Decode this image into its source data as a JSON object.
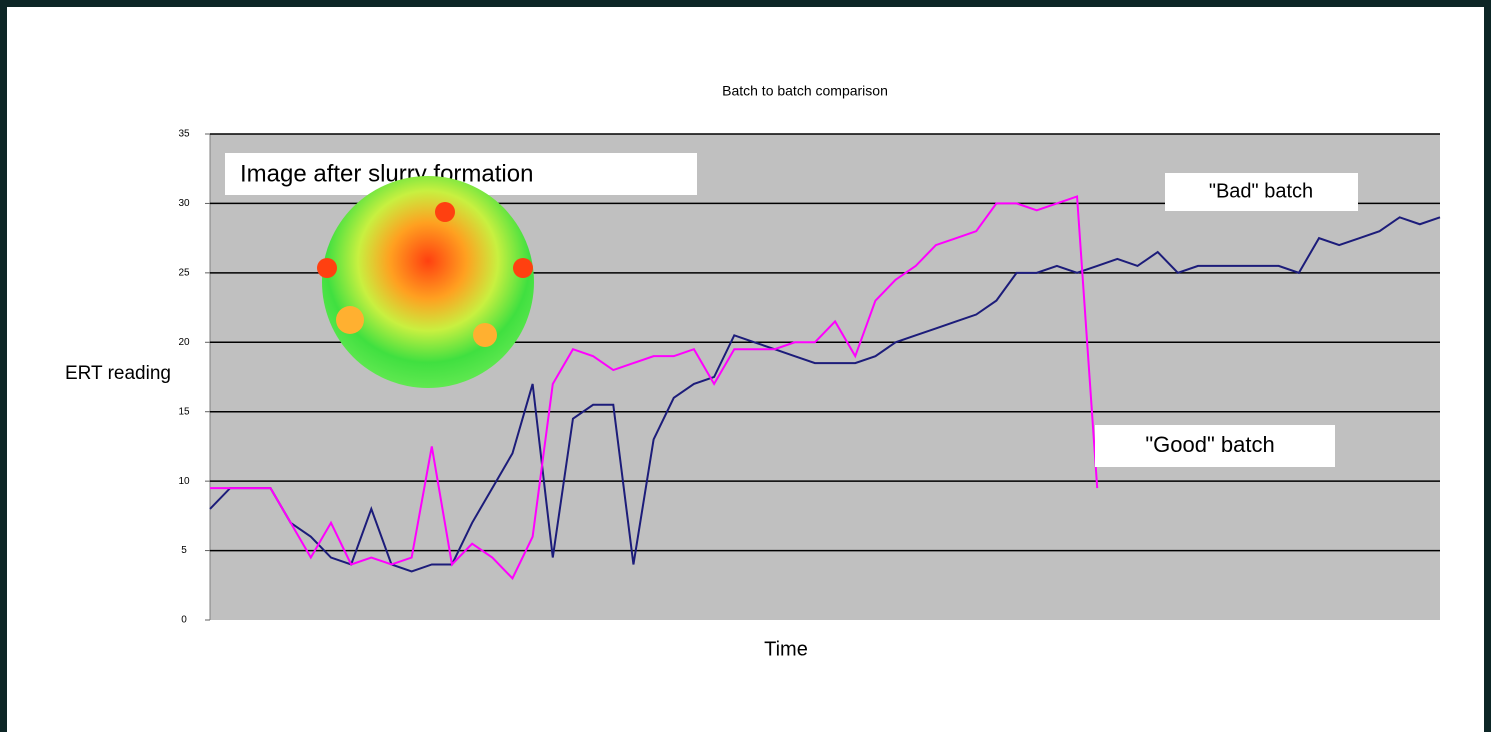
{
  "chart_data": {
    "type": "line",
    "title": "Batch to batch comparison",
    "x_label": "Time",
    "y_label": "ERT reading",
    "ylim": [
      0,
      35
    ],
    "yticks": [
      0,
      5,
      10,
      15,
      20,
      25,
      30,
      35
    ],
    "grid": true,
    "annotations": [
      "Image after slurry formation",
      "\"Bad\" batch",
      "\"Good\" batch"
    ],
    "series": [
      {
        "name": "\"Bad\" batch",
        "color": "#1c1c7a",
        "values": [
          8,
          9.5,
          9.5,
          9.5,
          7,
          6,
          4.5,
          4,
          8,
          4,
          3.5,
          4,
          4,
          7,
          9.5,
          12,
          17,
          4.5,
          14.5,
          15.5,
          15.5,
          4,
          13,
          16,
          17,
          17.5,
          20.5,
          20,
          19.5,
          19,
          18.5,
          18.5,
          18.5,
          19,
          20,
          20.5,
          21,
          21.5,
          22,
          23,
          25,
          25,
          25.5,
          25,
          25.5,
          26,
          25.5,
          26.5,
          25,
          25.5,
          25.5,
          25.5,
          25.5,
          25.5,
          25,
          27.5,
          27,
          27.5,
          28,
          29,
          28.5,
          29
        ]
      },
      {
        "name": "\"Good\" batch",
        "color": "#ff00ff",
        "values": [
          9.5,
          9.5,
          9.5,
          9.5,
          7,
          4.5,
          7,
          4,
          4.5,
          4,
          4.5,
          12.5,
          4,
          5.5,
          4.5,
          3,
          6,
          17,
          19.5,
          19,
          18,
          18.5,
          19,
          19,
          19.5,
          17,
          19.5,
          19.5,
          19.5,
          20,
          20,
          21.5,
          19,
          23,
          24.5,
          25.5,
          27,
          27.5,
          28,
          30,
          30,
          29.5,
          30,
          30.5,
          9.5,
          null,
          null,
          null,
          null,
          null,
          null,
          null,
          null,
          null,
          null,
          null,
          null,
          null,
          null,
          null,
          null,
          null
        ]
      }
    ]
  }
}
